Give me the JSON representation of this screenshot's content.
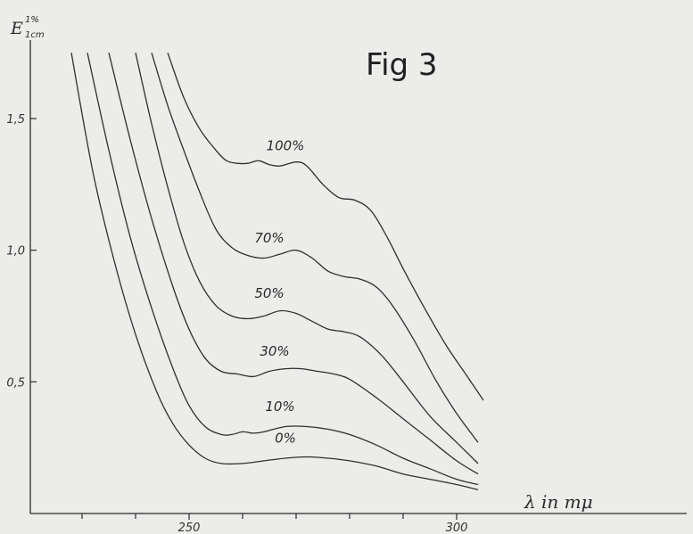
{
  "chart_data": {
    "type": "line",
    "title": "Fig 3",
    "xlabel": "λ in mμ",
    "ylabel": {
      "main": "E",
      "sup": "1%",
      "sub": "1cm"
    },
    "xlim": [
      221,
      311
    ],
    "ylim": [
      0,
      1.75
    ],
    "x_ticks": [
      250,
      300
    ],
    "x_tick_labels": [
      "250",
      "300"
    ],
    "x_minor_ticks": [
      230,
      240,
      260,
      270,
      280,
      290
    ],
    "y_ticks": [
      0.5,
      1.0,
      1.5
    ],
    "y_tick_labels": [
      "0,5",
      "1,0",
      "1,5"
    ],
    "grid": false,
    "legend": "inline labels on curves",
    "series": [
      {
        "name": "0%",
        "label_at": [
          268,
          0.27
        ],
        "points": [
          [
            228,
            1.75
          ],
          [
            232,
            1.3
          ],
          [
            236,
            0.96
          ],
          [
            240,
            0.68
          ],
          [
            244,
            0.46
          ],
          [
            247,
            0.34
          ],
          [
            250,
            0.26
          ],
          [
            253,
            0.21
          ],
          [
            256,
            0.19
          ],
          [
            260,
            0.19
          ],
          [
            264,
            0.2
          ],
          [
            268,
            0.21
          ],
          [
            272,
            0.215
          ],
          [
            276,
            0.21
          ],
          [
            280,
            0.2
          ],
          [
            285,
            0.18
          ],
          [
            290,
            0.15
          ],
          [
            295,
            0.13
          ],
          [
            300,
            0.11
          ],
          [
            304,
            0.09
          ]
        ]
      },
      {
        "name": "10%",
        "label_at": [
          267,
          0.39
        ],
        "points": [
          [
            231,
            1.75
          ],
          [
            235,
            1.38
          ],
          [
            239,
            1.05
          ],
          [
            243,
            0.78
          ],
          [
            247,
            0.55
          ],
          [
            250,
            0.41
          ],
          [
            253,
            0.33
          ],
          [
            256,
            0.3
          ],
          [
            258,
            0.3
          ],
          [
            260,
            0.31
          ],
          [
            262,
            0.305
          ],
          [
            264,
            0.31
          ],
          [
            268,
            0.33
          ],
          [
            272,
            0.33
          ],
          [
            276,
            0.32
          ],
          [
            280,
            0.3
          ],
          [
            285,
            0.26
          ],
          [
            290,
            0.21
          ],
          [
            295,
            0.17
          ],
          [
            300,
            0.13
          ],
          [
            304,
            0.11
          ]
        ]
      },
      {
        "name": "30%",
        "label_at": [
          266,
          0.6
        ],
        "points": [
          [
            235,
            1.75
          ],
          [
            239,
            1.42
          ],
          [
            243,
            1.12
          ],
          [
            247,
            0.86
          ],
          [
            250,
            0.7
          ],
          [
            253,
            0.59
          ],
          [
            256,
            0.54
          ],
          [
            259,
            0.53
          ],
          [
            262,
            0.52
          ],
          [
            265,
            0.54
          ],
          [
            268,
            0.55
          ],
          [
            271,
            0.55
          ],
          [
            274,
            0.54
          ],
          [
            277,
            0.53
          ],
          [
            280,
            0.51
          ],
          [
            285,
            0.44
          ],
          [
            290,
            0.36
          ],
          [
            295,
            0.28
          ],
          [
            300,
            0.2
          ],
          [
            304,
            0.15
          ]
        ]
      },
      {
        "name": "50%",
        "label_at": [
          265,
          0.82
        ],
        "points": [
          [
            240,
            1.75
          ],
          [
            243,
            1.48
          ],
          [
            246,
            1.24
          ],
          [
            249,
            1.03
          ],
          [
            252,
            0.88
          ],
          [
            255,
            0.79
          ],
          [
            258,
            0.75
          ],
          [
            261,
            0.74
          ],
          [
            264,
            0.75
          ],
          [
            267,
            0.77
          ],
          [
            270,
            0.76
          ],
          [
            273,
            0.73
          ],
          [
            276,
            0.7
          ],
          [
            279,
            0.69
          ],
          [
            282,
            0.67
          ],
          [
            286,
            0.6
          ],
          [
            290,
            0.5
          ],
          [
            295,
            0.37
          ],
          [
            300,
            0.27
          ],
          [
            304,
            0.19
          ]
        ]
      },
      {
        "name": "70%",
        "label_at": [
          265,
          1.03
        ],
        "points": [
          [
            243,
            1.75
          ],
          [
            246,
            1.55
          ],
          [
            249,
            1.38
          ],
          [
            252,
            1.22
          ],
          [
            255,
            1.08
          ],
          [
            258,
            1.01
          ],
          [
            261,
            0.98
          ],
          [
            264,
            0.97
          ],
          [
            267,
            0.985
          ],
          [
            270,
            1.0
          ],
          [
            273,
            0.97
          ],
          [
            276,
            0.92
          ],
          [
            279,
            0.9
          ],
          [
            282,
            0.89
          ],
          [
            285,
            0.86
          ],
          [
            288,
            0.79
          ],
          [
            292,
            0.66
          ],
          [
            296,
            0.51
          ],
          [
            300,
            0.38
          ],
          [
            304,
            0.27
          ]
        ]
      },
      {
        "name": "100%",
        "label_at": [
          268,
          1.38
        ],
        "points": [
          [
            246,
            1.75
          ],
          [
            249,
            1.58
          ],
          [
            252,
            1.46
          ],
          [
            255,
            1.38
          ],
          [
            257,
            1.34
          ],
          [
            259,
            1.33
          ],
          [
            261,
            1.33
          ],
          [
            263,
            1.34
          ],
          [
            265,
            1.325
          ],
          [
            267,
            1.32
          ],
          [
            270,
            1.335
          ],
          [
            272,
            1.32
          ],
          [
            275,
            1.25
          ],
          [
            278,
            1.2
          ],
          [
            281,
            1.19
          ],
          [
            284,
            1.15
          ],
          [
            287,
            1.05
          ],
          [
            290,
            0.93
          ],
          [
            294,
            0.78
          ],
          [
            298,
            0.64
          ],
          [
            302,
            0.52
          ],
          [
            305,
            0.43
          ]
        ]
      }
    ]
  }
}
